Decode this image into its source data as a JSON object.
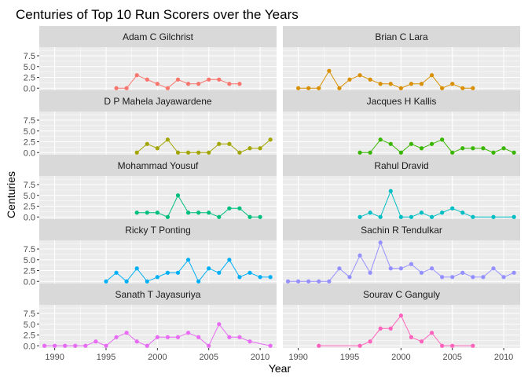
{
  "chart_data": {
    "type": "line",
    "title": "Centuries of Top 10 Run Scorers over the Years",
    "xlabel": "Year",
    "ylabel": "Centuries",
    "xlim": [
      1988.5,
      2011.6
    ],
    "ylim": [
      -0.5,
      9.5
    ],
    "x_ticks": [
      1990,
      1995,
      2000,
      2005,
      2010
    ],
    "y_ticks": [
      0.0,
      2.5,
      5.0,
      7.5
    ],
    "y_tick_labels": [
      "0.0",
      "2.5",
      "5.0",
      "7.5"
    ],
    "legend": "none",
    "grid": true,
    "panel_background": "#EBEBEB",
    "strip_background": "#D9D9D9",
    "series": [
      {
        "name": "Adam C Gilchrist",
        "color": "#F8766D",
        "x": [
          1996,
          1997,
          1998,
          1999,
          2000,
          2001,
          2002,
          2003,
          2004,
          2005,
          2006,
          2007,
          2008
        ],
        "y": [
          0,
          0,
          3,
          2,
          1,
          0,
          2,
          1,
          1,
          2,
          2,
          1,
          1
        ]
      },
      {
        "name": "Brian C Lara",
        "color": "#D89000",
        "x": [
          1990,
          1991,
          1992,
          1993,
          1994,
          1995,
          1996,
          1997,
          1998,
          1999,
          2000,
          2001,
          2002,
          2003,
          2004,
          2005,
          2006,
          2007
        ],
        "y": [
          0,
          0,
          0,
          4,
          0,
          2,
          3,
          2,
          1,
          1,
          0,
          1,
          1,
          3,
          0,
          1,
          0,
          0
        ]
      },
      {
        "name": "D P Mahela Jayawardene",
        "color": "#A3A500",
        "x": [
          1998,
          1999,
          2000,
          2001,
          2002,
          2003,
          2004,
          2005,
          2006,
          2007,
          2008,
          2009,
          2010,
          2011
        ],
        "y": [
          0,
          2,
          1,
          3,
          0,
          0,
          0,
          0,
          2,
          2,
          0,
          1,
          1,
          3
        ]
      },
      {
        "name": "Jacques H Kallis",
        "color": "#39B600",
        "x": [
          1996,
          1997,
          1998,
          1999,
          2000,
          2001,
          2002,
          2003,
          2004,
          2005,
          2006,
          2007,
          2008,
          2009,
          2010,
          2011
        ],
        "y": [
          0,
          0,
          3,
          2,
          0,
          2,
          1,
          2,
          3,
          0,
          1,
          1,
          1,
          0,
          1,
          0
        ]
      },
      {
        "name": "Mohammad Yousuf",
        "color": "#00BF7D",
        "x": [
          1998,
          1999,
          2000,
          2001,
          2002,
          2003,
          2004,
          2005,
          2006,
          2007,
          2008,
          2009,
          2010
        ],
        "y": [
          1,
          1,
          1,
          0,
          5,
          1,
          1,
          1,
          0,
          2,
          2,
          0,
          0
        ]
      },
      {
        "name": "Rahul Dravid",
        "color": "#00BFC4",
        "x": [
          1996,
          1997,
          1998,
          1999,
          2000,
          2001,
          2002,
          2003,
          2004,
          2005,
          2006,
          2007,
          2009,
          2011
        ],
        "y": [
          0,
          1,
          0,
          6,
          0,
          0,
          1,
          0,
          1,
          2,
          1,
          0,
          0,
          0
        ]
      },
      {
        "name": "Ricky T Ponting",
        "color": "#00B0F6",
        "x": [
          1995,
          1996,
          1997,
          1998,
          1999,
          2000,
          2001,
          2002,
          2003,
          2004,
          2005,
          2006,
          2007,
          2008,
          2009,
          2010,
          2011
        ],
        "y": [
          0,
          2,
          0,
          3,
          0,
          1,
          2,
          2,
          5,
          0,
          3,
          2,
          5,
          1,
          2,
          1,
          1
        ]
      },
      {
        "name": "Sachin R Tendulkar",
        "color": "#9590FF",
        "x": [
          1989,
          1990,
          1991,
          1992,
          1993,
          1994,
          1995,
          1996,
          1997,
          1998,
          1999,
          2000,
          2001,
          2002,
          2003,
          2004,
          2005,
          2006,
          2007,
          2008,
          2009,
          2010,
          2011
        ],
        "y": [
          0,
          0,
          0,
          0,
          0,
          3,
          1,
          6,
          2,
          9,
          3,
          3,
          4,
          2,
          3,
          1,
          1,
          2,
          1,
          1,
          3,
          1,
          2
        ]
      },
      {
        "name": "Sanath T Jayasuriya",
        "color": "#E76BF3",
        "x": [
          1989,
          1990,
          1991,
          1992,
          1993,
          1994,
          1995,
          1996,
          1997,
          1998,
          1999,
          2000,
          2001,
          2002,
          2003,
          2004,
          2005,
          2006,
          2007,
          2008,
          2009,
          2011
        ],
        "y": [
          0,
          0,
          0,
          0,
          0,
          1,
          0,
          2,
          3,
          1,
          0,
          2,
          2,
          2,
          3,
          2,
          0,
          5,
          2,
          2,
          1,
          0
        ]
      },
      {
        "name": "Sourav C Ganguly",
        "color": "#FF62BC",
        "x": [
          1992,
          1996,
          1997,
          1998,
          1999,
          2000,
          2001,
          2002,
          2003,
          2004,
          2005,
          2007
        ],
        "y": [
          0,
          0,
          1,
          4,
          4,
          7,
          2,
          1,
          3,
          0,
          0,
          0
        ]
      }
    ]
  }
}
